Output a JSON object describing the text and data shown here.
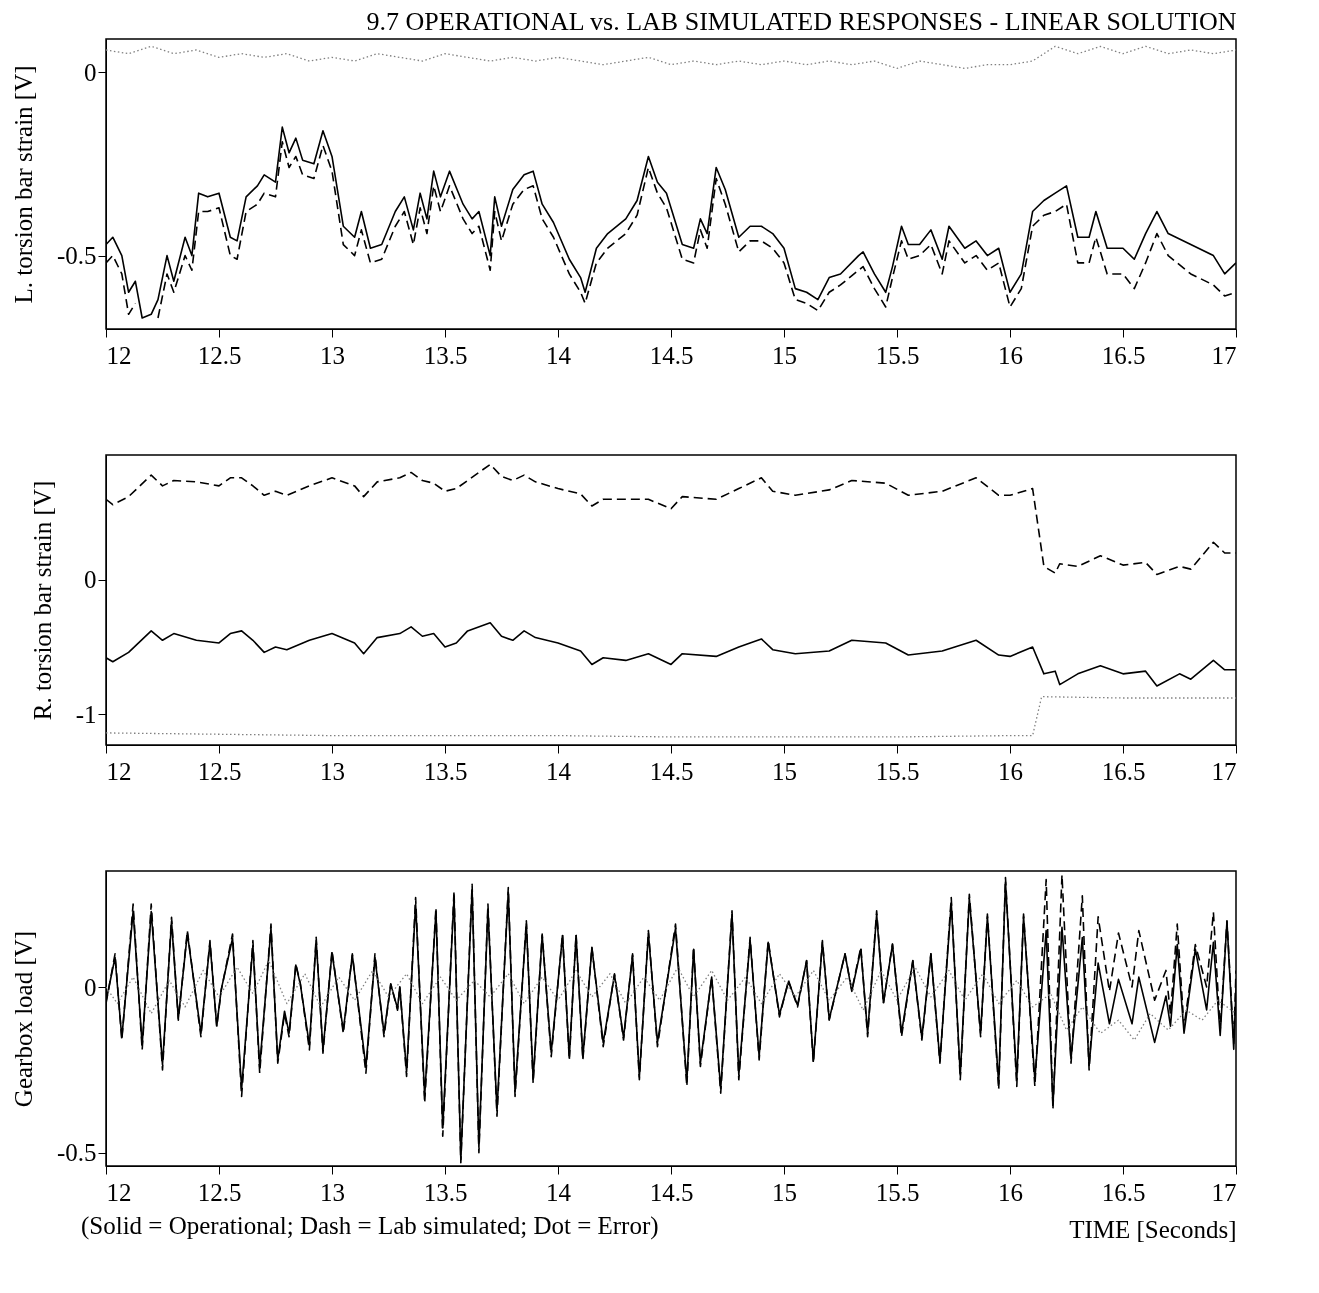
{
  "chart_data": [
    {
      "type": "line",
      "title": "9.7 OPERATIONAL vs. LAB SIMULATED RESPONSES - LINEAR SOLUTION",
      "ylabel": "L. torsion bar strain [V]",
      "xlim": [
        12,
        17
      ],
      "xticks": [
        12,
        12.5,
        13,
        13.5,
        14,
        14.5,
        15,
        15.5,
        16,
        16.5,
        17
      ],
      "ylim": [
        -0.7,
        0.09
      ],
      "yticks": [
        0,
        -0.5
      ],
      "x": [
        12.0,
        12.03,
        12.07,
        12.1,
        12.13,
        12.16,
        12.2,
        12.23,
        12.27,
        12.3,
        12.35,
        12.38,
        12.41,
        12.45,
        12.5,
        12.55,
        12.58,
        12.62,
        12.67,
        12.7,
        12.75,
        12.78,
        12.81,
        12.84,
        12.87,
        12.92,
        12.96,
        13.0,
        13.05,
        13.1,
        13.13,
        13.17,
        13.22,
        13.28,
        13.32,
        13.36,
        13.39,
        13.42,
        13.45,
        13.48,
        13.52,
        13.58,
        13.62,
        13.65,
        13.7,
        13.72,
        13.75,
        13.8,
        13.85,
        13.89,
        13.93,
        13.98,
        14.05,
        14.1,
        14.12,
        14.17,
        14.22,
        14.3,
        14.35,
        14.4,
        14.44,
        14.48,
        14.55,
        14.6,
        14.63,
        14.66,
        14.7,
        14.74,
        14.8,
        14.85,
        14.9,
        14.95,
        15.0,
        15.05,
        15.1,
        15.15,
        15.2,
        15.25,
        15.33,
        15.35,
        15.4,
        15.45,
        15.48,
        15.52,
        15.55,
        15.6,
        15.65,
        15.7,
        15.73,
        15.8,
        15.85,
        15.9,
        15.95,
        16.0,
        16.05,
        16.1,
        16.15,
        16.2,
        16.25,
        16.3,
        16.35,
        16.38,
        16.43,
        16.5,
        16.55,
        16.6,
        16.65,
        16.7,
        16.8,
        16.9,
        16.95,
        17.0
      ],
      "series": [
        {
          "color": "#000000",
          "line_style": "solid",
          "values": [
            -0.47,
            -0.45,
            -0.5,
            -0.6,
            -0.57,
            -0.67,
            -0.66,
            -0.62,
            -0.5,
            -0.57,
            -0.45,
            -0.5,
            -0.33,
            -0.34,
            -0.33,
            -0.45,
            -0.46,
            -0.34,
            -0.31,
            -0.28,
            -0.3,
            -0.15,
            -0.22,
            -0.18,
            -0.24,
            -0.25,
            -0.16,
            -0.23,
            -0.42,
            -0.45,
            -0.38,
            -0.48,
            -0.47,
            -0.38,
            -0.34,
            -0.43,
            -0.33,
            -0.4,
            -0.27,
            -0.34,
            -0.27,
            -0.36,
            -0.4,
            -0.38,
            -0.5,
            -0.34,
            -0.42,
            -0.32,
            -0.28,
            -0.27,
            -0.36,
            -0.41,
            -0.51,
            -0.56,
            -0.6,
            -0.48,
            -0.44,
            -0.4,
            -0.35,
            -0.23,
            -0.3,
            -0.33,
            -0.47,
            -0.48,
            -0.4,
            -0.44,
            -0.26,
            -0.32,
            -0.45,
            -0.42,
            -0.42,
            -0.44,
            -0.48,
            -0.59,
            -0.6,
            -0.62,
            -0.56,
            -0.55,
            -0.5,
            -0.49,
            -0.55,
            -0.6,
            -0.53,
            -0.42,
            -0.47,
            -0.47,
            -0.43,
            -0.51,
            -0.42,
            -0.48,
            -0.46,
            -0.5,
            -0.48,
            -0.6,
            -0.55,
            -0.38,
            -0.35,
            -0.33,
            -0.31,
            -0.45,
            -0.45,
            -0.38,
            -0.48,
            -0.48,
            -0.51,
            -0.44,
            -0.38,
            -0.44,
            -0.47,
            -0.5,
            -0.55,
            -0.52
          ]
        },
        {
          "color": "#000000",
          "line_style": "dashed",
          "values": [
            -0.52,
            -0.5,
            -0.55,
            -0.66,
            -0.63,
            null,
            null,
            -0.67,
            -0.55,
            -0.6,
            -0.5,
            -0.54,
            -0.38,
            -0.38,
            -0.37,
            -0.5,
            -0.51,
            -0.38,
            -0.36,
            -0.33,
            -0.34,
            -0.19,
            -0.26,
            -0.23,
            -0.28,
            -0.29,
            -0.2,
            -0.27,
            -0.47,
            -0.5,
            -0.43,
            -0.52,
            -0.51,
            -0.42,
            -0.38,
            -0.47,
            -0.37,
            -0.44,
            -0.31,
            -0.38,
            -0.31,
            -0.4,
            -0.44,
            -0.42,
            -0.54,
            -0.38,
            -0.46,
            -0.36,
            -0.32,
            -0.31,
            -0.4,
            -0.45,
            -0.55,
            -0.6,
            -0.63,
            -0.52,
            -0.48,
            -0.44,
            -0.39,
            -0.26,
            -0.33,
            -0.37,
            -0.51,
            -0.52,
            -0.43,
            -0.48,
            -0.29,
            -0.36,
            -0.49,
            -0.46,
            -0.46,
            -0.48,
            -0.52,
            -0.62,
            -0.63,
            -0.65,
            -0.6,
            -0.58,
            -0.54,
            -0.53,
            -0.59,
            -0.64,
            -0.56,
            -0.46,
            -0.51,
            -0.5,
            -0.47,
            -0.55,
            -0.46,
            -0.52,
            -0.5,
            -0.54,
            -0.52,
            -0.64,
            -0.59,
            -0.42,
            -0.39,
            -0.38,
            -0.36,
            -0.52,
            -0.52,
            -0.45,
            -0.55,
            -0.55,
            -0.59,
            -0.52,
            -0.44,
            -0.5,
            -0.55,
            -0.58,
            -0.61,
            -0.6
          ]
        },
        {
          "color": "#808080",
          "line_style": "dotted",
          "x": [
            12.0,
            12.1,
            12.2,
            12.3,
            12.4,
            12.5,
            12.6,
            12.7,
            12.8,
            12.9,
            13.0,
            13.1,
            13.2,
            13.3,
            13.4,
            13.5,
            13.6,
            13.7,
            13.8,
            13.9,
            14.0,
            14.1,
            14.2,
            14.3,
            14.4,
            14.5,
            14.6,
            14.7,
            14.8,
            14.9,
            15.0,
            15.1,
            15.2,
            15.3,
            15.4,
            15.5,
            15.6,
            15.7,
            15.8,
            15.9,
            16.0,
            16.1,
            16.2,
            16.3,
            16.4,
            16.5,
            16.6,
            16.7,
            16.8,
            16.9,
            17.0
          ],
          "values": [
            0.06,
            0.05,
            0.07,
            0.05,
            0.06,
            0.04,
            0.05,
            0.04,
            0.05,
            0.03,
            0.04,
            0.03,
            0.05,
            0.04,
            0.03,
            0.05,
            0.04,
            0.03,
            0.04,
            0.03,
            0.04,
            0.03,
            0.02,
            0.03,
            0.04,
            0.02,
            0.03,
            0.02,
            0.03,
            0.02,
            0.03,
            0.02,
            0.03,
            0.02,
            0.03,
            0.01,
            0.03,
            0.02,
            0.01,
            0.02,
            0.02,
            0.03,
            0.07,
            0.05,
            0.07,
            0.05,
            0.07,
            0.05,
            0.06,
            0.05,
            0.06
          ]
        }
      ]
    },
    {
      "type": "line",
      "ylabel": "R. torsion bar strain [V]",
      "xlim": [
        12,
        17
      ],
      "xticks": [
        12,
        12.5,
        13,
        13.5,
        14,
        14.5,
        15,
        15.5,
        16,
        16.5,
        17
      ],
      "ylim": [
        -1.23,
        0.93
      ],
      "yticks": [
        0,
        -1
      ],
      "x": [
        12.0,
        12.03,
        12.1,
        12.2,
        12.25,
        12.3,
        12.4,
        12.5,
        12.55,
        12.6,
        12.65,
        12.7,
        12.75,
        12.8,
        12.9,
        13.0,
        13.1,
        13.14,
        13.2,
        13.3,
        13.35,
        13.4,
        13.45,
        13.5,
        13.55,
        13.6,
        13.7,
        13.75,
        13.8,
        13.85,
        13.9,
        14.0,
        14.1,
        14.15,
        14.2,
        14.3,
        14.4,
        14.5,
        14.55,
        14.7,
        14.8,
        14.9,
        14.95,
        15.05,
        15.2,
        15.3,
        15.45,
        15.55,
        15.7,
        15.85,
        15.95,
        16.0,
        16.1,
        16.15,
        16.2,
        16.22,
        16.3,
        16.4,
        16.5,
        16.6,
        16.65,
        16.75,
        16.8,
        16.9,
        16.95,
        17.0
      ],
      "series": [
        {
          "color": "#000000",
          "line_style": "solid",
          "values": [
            -0.58,
            -0.61,
            -0.54,
            -0.38,
            -0.45,
            -0.4,
            -0.45,
            -0.47,
            -0.4,
            -0.38,
            -0.45,
            -0.54,
            -0.5,
            -0.52,
            -0.45,
            -0.4,
            -0.47,
            -0.55,
            -0.43,
            -0.4,
            -0.35,
            -0.42,
            -0.4,
            -0.5,
            -0.47,
            -0.38,
            -0.32,
            -0.42,
            -0.45,
            -0.38,
            -0.43,
            -0.47,
            -0.53,
            -0.63,
            -0.58,
            -0.6,
            -0.55,
            -0.63,
            -0.55,
            -0.57,
            -0.5,
            -0.44,
            -0.52,
            -0.55,
            -0.53,
            -0.45,
            -0.47,
            -0.56,
            -0.53,
            -0.45,
            -0.56,
            -0.57,
            -0.5,
            -0.7,
            -0.68,
            -0.78,
            -0.7,
            -0.64,
            -0.7,
            -0.68,
            -0.79,
            -0.7,
            -0.74,
            -0.6,
            -0.67,
            -0.67
          ]
        },
        {
          "color": "#000000",
          "line_style": "dashed",
          "values": [
            0.6,
            0.56,
            0.62,
            0.78,
            0.7,
            0.74,
            0.73,
            0.7,
            0.76,
            0.76,
            0.7,
            0.63,
            0.66,
            0.63,
            0.7,
            0.76,
            0.7,
            0.62,
            0.73,
            0.76,
            0.8,
            0.74,
            0.72,
            0.66,
            0.68,
            0.74,
            0.86,
            0.77,
            0.74,
            0.78,
            0.73,
            0.68,
            0.64,
            0.55,
            0.6,
            0.6,
            0.6,
            0.53,
            0.62,
            0.6,
            0.68,
            0.76,
            0.66,
            0.63,
            0.67,
            0.74,
            0.72,
            0.63,
            0.66,
            0.76,
            0.63,
            0.63,
            0.68,
            0.1,
            0.05,
            0.12,
            0.1,
            0.18,
            0.11,
            0.13,
            0.04,
            0.1,
            0.08,
            0.28,
            0.2,
            0.2
          ]
        },
        {
          "color": "#808080",
          "line_style": "dotted",
          "x": [
            12.0,
            12.5,
            13.0,
            13.5,
            14.0,
            14.5,
            15.0,
            15.5,
            16.0,
            16.1,
            16.14,
            16.5,
            17.0
          ],
          "values": [
            -1.14,
            -1.15,
            -1.16,
            -1.16,
            -1.16,
            -1.17,
            -1.17,
            -1.17,
            -1.16,
            -1.16,
            -0.87,
            -0.88,
            -0.88
          ]
        }
      ]
    },
    {
      "type": "line",
      "ylabel": "Gearbox load [V]",
      "xlabel": "TIME [Seconds]",
      "annotations": [
        "(Solid = Operational; Dash = Lab simulated; Dot = Error)"
      ],
      "xlim": [
        12,
        17
      ],
      "xticks": [
        12,
        12.5,
        13,
        13.5,
        14,
        14.5,
        15,
        15.5,
        16,
        16.5,
        17
      ],
      "ylim": [
        -0.54,
        0.35
      ],
      "yticks": [
        0,
        -0.5
      ],
      "x": [
        12.0,
        12.04,
        12.07,
        12.12,
        12.16,
        12.2,
        12.25,
        12.29,
        12.32,
        12.36,
        12.42,
        12.46,
        12.49,
        12.51,
        12.56,
        12.6,
        12.65,
        12.68,
        12.73,
        12.76,
        12.79,
        12.81,
        12.84,
        12.86,
        12.9,
        12.93,
        12.96,
        13.0,
        13.05,
        13.09,
        13.15,
        13.19,
        13.23,
        13.26,
        13.29,
        13.3,
        13.33,
        13.37,
        13.41,
        13.46,
        13.49,
        13.54,
        13.57,
        13.62,
        13.65,
        13.69,
        13.73,
        13.78,
        13.81,
        13.86,
        13.89,
        13.93,
        13.97,
        14.02,
        14.05,
        14.08,
        14.11,
        14.15,
        14.2,
        14.25,
        14.29,
        14.33,
        14.36,
        14.4,
        14.44,
        14.52,
        14.57,
        14.6,
        14.63,
        14.68,
        14.72,
        14.77,
        14.8,
        14.85,
        14.89,
        14.93,
        14.98,
        15.02,
        15.06,
        15.1,
        15.13,
        15.17,
        15.2,
        15.27,
        15.3,
        15.34,
        15.37,
        15.41,
        15.44,
        15.48,
        15.52,
        15.57,
        15.61,
        15.65,
        15.69,
        15.74,
        15.78,
        15.82,
        15.87,
        15.9,
        15.95,
        15.98,
        16.03,
        16.06,
        16.11,
        16.16,
        16.19,
        16.23,
        16.27,
        16.32,
        16.35,
        16.39,
        16.44,
        16.48,
        16.54,
        16.57,
        16.64,
        16.69,
        16.71,
        16.74,
        16.77,
        16.82,
        16.87,
        16.9,
        16.93,
        16.96,
        16.99,
        17.0
      ],
      "series": [
        {
          "color": "#000000",
          "line_style": "solid",
          "values": [
            -0.044,
            0.089,
            -0.153,
            0.228,
            -0.175,
            0.228,
            -0.234,
            0.198,
            -0.095,
            0.162,
            -0.139,
            0.133,
            -0.117,
            -0.007,
            0.147,
            -0.307,
            0.125,
            -0.241,
            0.176,
            -0.219,
            -0.073,
            -0.139,
            0.066,
            0.008,
            -0.175,
            0.14,
            -0.19,
            0.103,
            -0.131,
            0.096,
            -0.241,
            0.089,
            -0.139,
            0.008,
            -0.065,
            0.001,
            -0.256,
            0.25,
            -0.329,
            0.228,
            -0.425,
            0.272,
            -0.52,
            0.294,
            -0.483,
            0.235,
            -0.373,
            0.286,
            -0.315,
            0.191,
            -0.278,
            0.155,
            -0.197,
            0.155,
            -0.212,
            0.155,
            -0.212,
            0.118,
            -0.168,
            0.037,
            -0.153,
            0.096,
            -0.271,
            0.162,
            -0.168,
            0.177,
            -0.286,
            0.114,
            -0.23,
            0.03,
            -0.307,
            0.219,
            -0.265,
            0.142,
            -0.209,
            0.135,
            -0.083,
            0.016,
            -0.055,
            0.079,
            -0.223,
            0.135,
            -0.097,
            0.1,
            -0.013,
            0.114,
            -0.139,
            0.219,
            -0.047,
            0.128,
            -0.139,
            0.079,
            -0.153,
            0.1,
            -0.223,
            0.254,
            -0.265,
            0.268,
            -0.139,
            0.212,
            -0.293,
            0.317,
            -0.279,
            0.212,
            -0.279,
            0.17,
            -0.356,
            0.18,
            -0.216,
            0.149,
            -0.237,
            0.072,
            -0.111,
            0.023,
            -0.111,
            0.03,
            -0.167,
            -0.027,
            -0.118,
            0.128,
            -0.139,
            0.114,
            -0.069,
            0.135,
            -0.146,
            0.198,
            -0.188,
            0.0
          ]
        },
        {
          "color": "#000000",
          "line_style": "dashed",
          "values": [
            -0.05,
            0.1,
            -0.16,
            0.25,
            -0.19,
            0.25,
            -0.25,
            0.21,
            -0.1,
            0.17,
            -0.15,
            0.14,
            -0.12,
            -0.01,
            0.16,
            -0.33,
            0.14,
            -0.26,
            0.19,
            -0.23,
            -0.08,
            -0.15,
            0.07,
            0.01,
            -0.19,
            0.15,
            -0.2,
            0.11,
            -0.14,
            0.1,
            -0.26,
            0.1,
            -0.15,
            0.01,
            -0.07,
            0.0,
            -0.27,
            0.27,
            -0.35,
            0.24,
            -0.45,
            0.29,
            -0.53,
            0.31,
            -0.5,
            0.25,
            -0.39,
            0.3,
            -0.33,
            0.2,
            -0.29,
            0.16,
            -0.21,
            0.16,
            -0.22,
            0.16,
            -0.22,
            0.12,
            -0.18,
            0.04,
            -0.16,
            0.1,
            -0.28,
            0.17,
            -0.18,
            0.19,
            -0.3,
            0.12,
            -0.24,
            0.03,
            -0.32,
            0.23,
            -0.28,
            0.15,
            -0.22,
            0.14,
            -0.09,
            0.02,
            -0.06,
            0.08,
            -0.23,
            0.14,
            -0.1,
            0.1,
            -0.01,
            0.12,
            -0.15,
            0.23,
            -0.05,
            0.13,
            -0.15,
            0.08,
            -0.16,
            0.1,
            -0.23,
            0.27,
            -0.28,
            0.28,
            -0.15,
            0.22,
            -0.31,
            0.33,
            -0.3,
            0.22,
            -0.3,
            0.324,
            -0.37,
            0.338,
            -0.23,
            0.275,
            -0.25,
            0.212,
            -0.013,
            0.163,
            0.0,
            0.17,
            -0.04,
            0.05,
            -0.083,
            0.19,
            -0.12,
            0.128,
            0.0,
            0.226,
            -0.13,
            0.2,
            -0.17,
            0.05
          ]
        },
        {
          "color": "#808080",
          "line_style": "dotted",
          "x": [
            12.0,
            12.05,
            12.12,
            12.2,
            12.28,
            12.35,
            12.43,
            12.5,
            12.58,
            12.65,
            12.72,
            12.8,
            12.88,
            12.95,
            13.03,
            13.1,
            13.18,
            13.25,
            13.33,
            13.4,
            13.48,
            13.55,
            13.63,
            13.7,
            13.78,
            13.85,
            13.93,
            14.0,
            14.08,
            14.15,
            14.23,
            14.3,
            14.38,
            14.45,
            14.53,
            14.6,
            14.68,
            14.75,
            14.83,
            14.9,
            14.98,
            15.05,
            15.13,
            15.2,
            15.28,
            15.35,
            15.43,
            15.5,
            15.58,
            15.65,
            15.73,
            15.8,
            15.88,
            15.95,
            16.03,
            16.1,
            16.18,
            16.25,
            16.32,
            16.4,
            16.48,
            16.55,
            16.62,
            16.7,
            16.78,
            16.85,
            16.92,
            17.0
          ],
          "values": [
            0.0,
            -0.05,
            0.03,
            -0.08,
            0.02,
            -0.06,
            0.05,
            -0.03,
            0.06,
            -0.02,
            0.08,
            -0.05,
            0.04,
            -0.06,
            0.03,
            -0.04,
            0.05,
            -0.03,
            0.04,
            -0.05,
            0.03,
            -0.04,
            0.02,
            -0.03,
            0.04,
            -0.05,
            0.03,
            -0.04,
            0.05,
            -0.03,
            0.04,
            -0.05,
            0.03,
            -0.04,
            0.06,
            -0.03,
            0.05,
            -0.04,
            0.03,
            -0.05,
            0.04,
            -0.03,
            0.05,
            -0.04,
            0.03,
            -0.07,
            0.05,
            -0.04,
            0.06,
            -0.03,
            0.05,
            -0.04,
            0.04,
            -0.05,
            0.02,
            -0.06,
            -0.02,
            -0.13,
            -0.06,
            -0.14,
            -0.1,
            -0.16,
            -0.08,
            -0.13,
            -0.07,
            -0.1,
            -0.04,
            -0.08
          ]
        }
      ]
    }
  ]
}
